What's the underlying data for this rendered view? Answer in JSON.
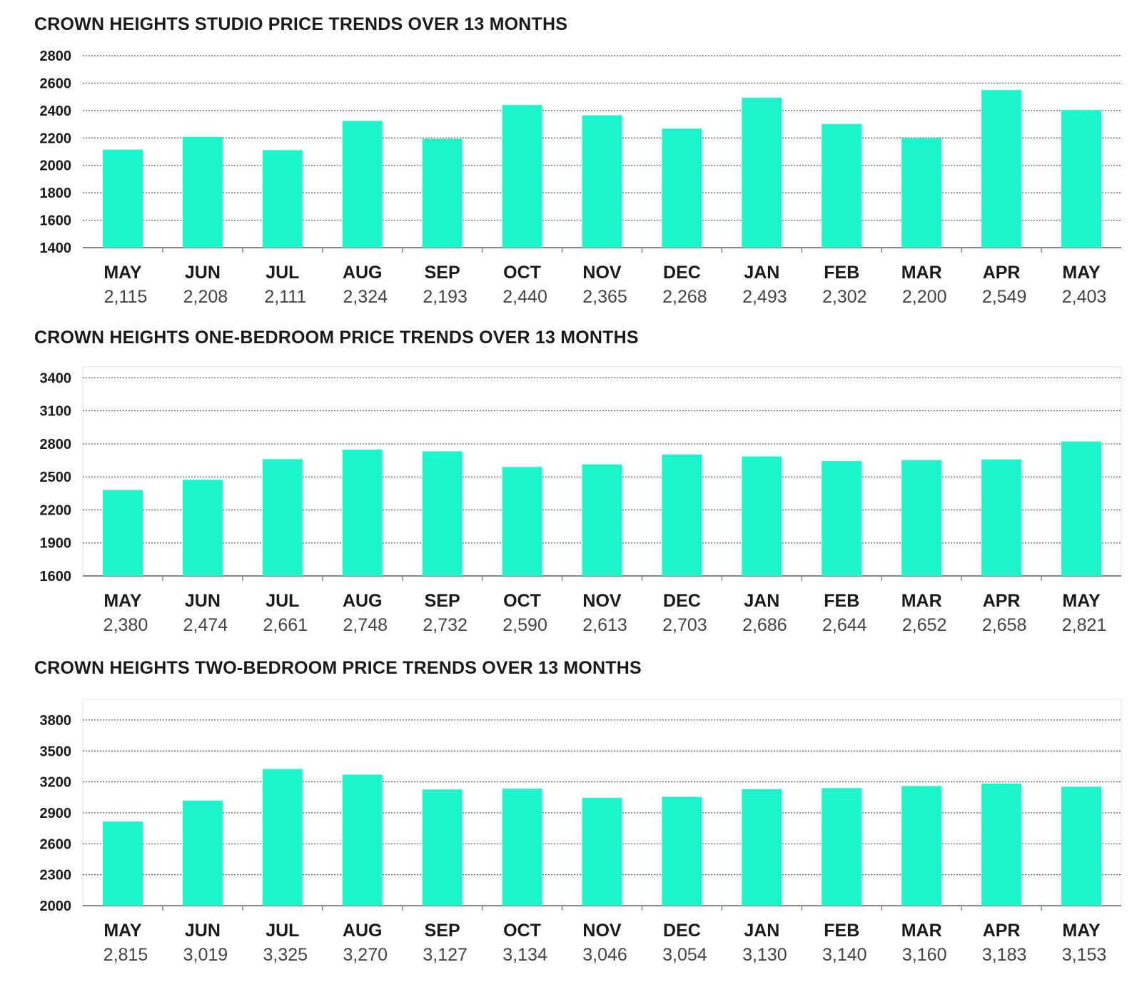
{
  "colors": {
    "bar": "#1cf5cb",
    "grid": "#555555",
    "axis": "#888888"
  },
  "chart_data": [
    {
      "type": "bar",
      "title": "CROWN HEIGHTS STUDIO PRICE TRENDS OVER 13 MONTHS",
      "categories": [
        "MAY",
        "JUN",
        "JUL",
        "AUG",
        "SEP",
        "OCT",
        "NOV",
        "DEC",
        "JAN",
        "FEB",
        "MAR",
        "APR",
        "MAY"
      ],
      "values": [
        2115,
        2208,
        2111,
        2324,
        2193,
        2440,
        2365,
        2268,
        2493,
        2302,
        2200,
        2549,
        2403
      ],
      "value_labels": [
        "2,115",
        "2,208",
        "2,111",
        "2,324",
        "2,193",
        "2,440",
        "2,365",
        "2,268",
        "2,493",
        "2,302",
        "2,200",
        "2,549",
        "2,403"
      ],
      "yticks": [
        1400,
        1600,
        1800,
        2000,
        2200,
        2400,
        2600,
        2800
      ],
      "ylim": [
        1400,
        2800
      ],
      "grid": true
    },
    {
      "type": "bar",
      "title": "CROWN HEIGHTS ONE-BEDROOM PRICE TRENDS OVER 13 MONTHS",
      "categories": [
        "MAY",
        "JUN",
        "JUL",
        "AUG",
        "SEP",
        "OCT",
        "NOV",
        "DEC",
        "JAN",
        "FEB",
        "MAR",
        "APR",
        "MAY"
      ],
      "values": [
        2380,
        2474,
        2661,
        2748,
        2732,
        2590,
        2613,
        2703,
        2686,
        2644,
        2652,
        2658,
        2821
      ],
      "value_labels": [
        "2,380",
        "2,474",
        "2,661",
        "2,748",
        "2,732",
        "2,590",
        "2,613",
        "2,703",
        "2,686",
        "2,644",
        "2,652",
        "2,658",
        "2,821"
      ],
      "yticks": [
        1600,
        1900,
        2200,
        2500,
        2800,
        3100,
        3400
      ],
      "ylim": [
        1600,
        3500
      ],
      "grid": true
    },
    {
      "type": "bar",
      "title": "CROWN HEIGHTS TWO-BEDROOM PRICE TRENDS OVER 13 MONTHS",
      "categories": [
        "MAY",
        "JUN",
        "JUL",
        "AUG",
        "SEP",
        "OCT",
        "NOV",
        "DEC",
        "JAN",
        "FEB",
        "MAR",
        "APR",
        "MAY"
      ],
      "values": [
        2815,
        3019,
        3325,
        3270,
        3127,
        3134,
        3046,
        3054,
        3130,
        3140,
        3160,
        3183,
        3153
      ],
      "value_labels": [
        "2,815",
        "3,019",
        "3,325",
        "3,270",
        "3,127",
        "3,134",
        "3,046",
        "3,054",
        "3,130",
        "3,140",
        "3,160",
        "3,183",
        "3,153"
      ],
      "yticks": [
        2000,
        2300,
        2600,
        2900,
        3200,
        3500,
        3800
      ],
      "ylim": [
        2000,
        4000
      ],
      "grid": true
    }
  ]
}
